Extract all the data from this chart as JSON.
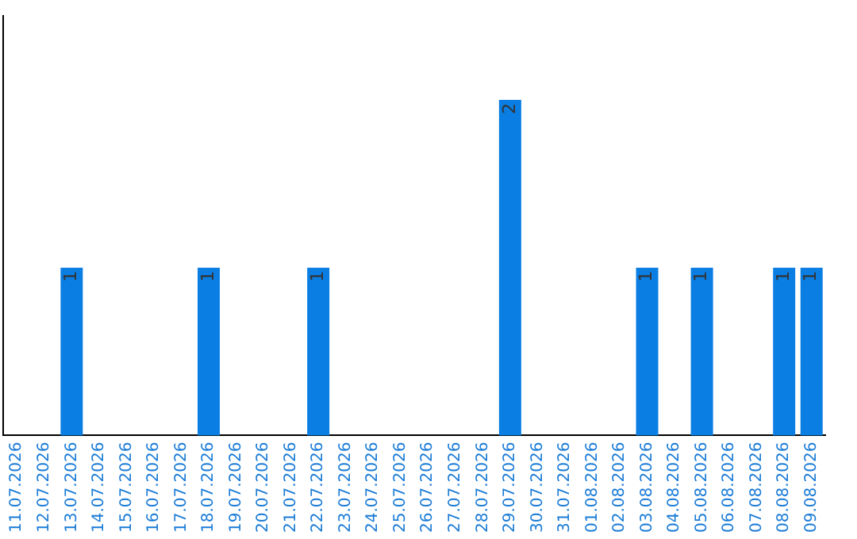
{
  "chart_data": {
    "type": "bar",
    "categories": [
      "11.07.2026",
      "12.07.2026",
      "13.07.2026",
      "14.07.2026",
      "15.07.2026",
      "16.07.2026",
      "17.07.2026",
      "18.07.2026",
      "19.07.2026",
      "20.07.2026",
      "21.07.2026",
      "22.07.2026",
      "23.07.2026",
      "24.07.2026",
      "25.07.2026",
      "26.07.2026",
      "27.07.2026",
      "28.07.2026",
      "29.07.2026",
      "30.07.2026",
      "31.07.2026",
      "01.08.2026",
      "02.08.2026",
      "03.08.2026",
      "04.08.2026",
      "05.08.2026",
      "06.08.2026",
      "07.08.2026",
      "08.08.2026",
      "09.08.2026"
    ],
    "values": [
      0,
      0,
      1,
      0,
      0,
      0,
      0,
      1,
      0,
      0,
      0,
      1,
      0,
      0,
      0,
      0,
      0,
      0,
      2,
      0,
      0,
      0,
      0,
      1,
      0,
      1,
      0,
      0,
      1,
      1
    ],
    "value_labels": [
      null,
      null,
      "1",
      null,
      null,
      null,
      null,
      "1",
      null,
      null,
      null,
      "1",
      null,
      null,
      null,
      null,
      null,
      null,
      "2",
      null,
      null,
      null,
      null,
      "1",
      null,
      "1",
      null,
      null,
      "1",
      "1"
    ],
    "color": "#0a7ee3",
    "tick_labels": "x",
    "grid": false,
    "legend": false
  }
}
